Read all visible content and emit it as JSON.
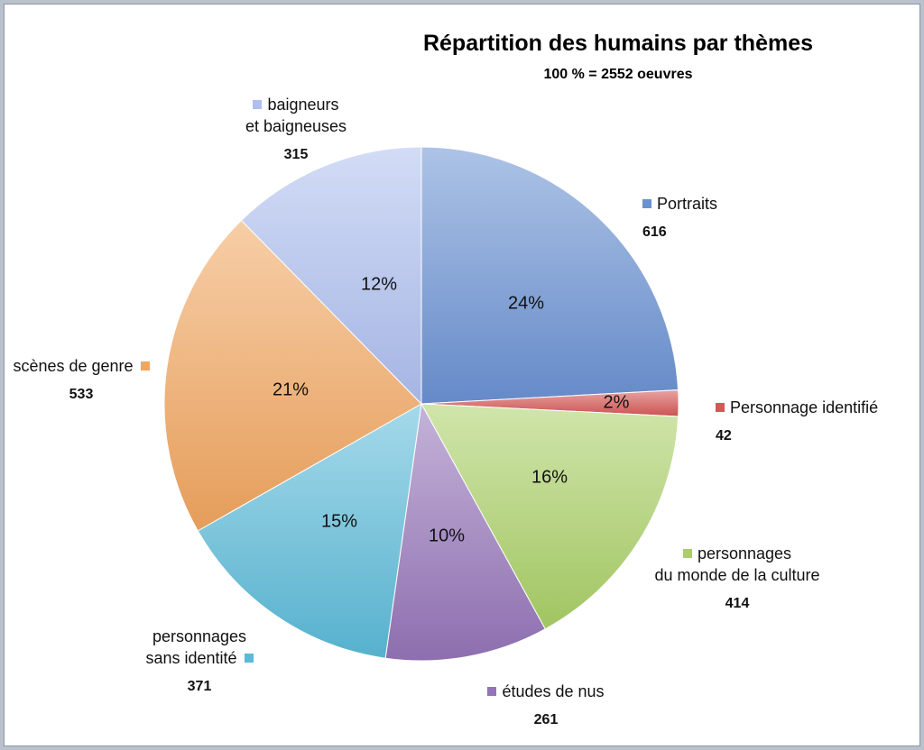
{
  "chart_data": {
    "type": "pie",
    "title": "Répartition des humains par thèmes",
    "subtitle": "100 % = 2552 oeuvres",
    "slices": [
      {
        "label_lines": [
          "Portraits"
        ],
        "value": 616,
        "value_text": "616",
        "percent_text": "24%",
        "color": "#6a91d2"
      },
      {
        "label_lines": [
          "Personnage identifié"
        ],
        "value": 42,
        "value_text": "42",
        "percent_text": "2%",
        "color": "#d65755"
      },
      {
        "label_lines": [
          "personnages",
          "du monde de la culture"
        ],
        "value": 414,
        "value_text": "414",
        "percent_text": "16%",
        "color": "#a9cf66"
      },
      {
        "label_lines": [
          "études de nus"
        ],
        "value": 261,
        "value_text": "261",
        "percent_text": "10%",
        "color": "#9474b8"
      },
      {
        "label_lines": [
          "personnages",
          "sans identité"
        ],
        "value": 371,
        "value_text": "371",
        "percent_text": "15%",
        "color": "#5bbad8"
      },
      {
        "label_lines": [
          "scènes de genre"
        ],
        "value": 533,
        "value_text": "533",
        "percent_text": "21%",
        "color": "#f1a55f"
      },
      {
        "label_lines": [
          "baigneurs",
          "et baigneuses"
        ],
        "value": 315,
        "value_text": "315",
        "percent_text": "12%",
        "color": "#aebfef"
      }
    ]
  }
}
